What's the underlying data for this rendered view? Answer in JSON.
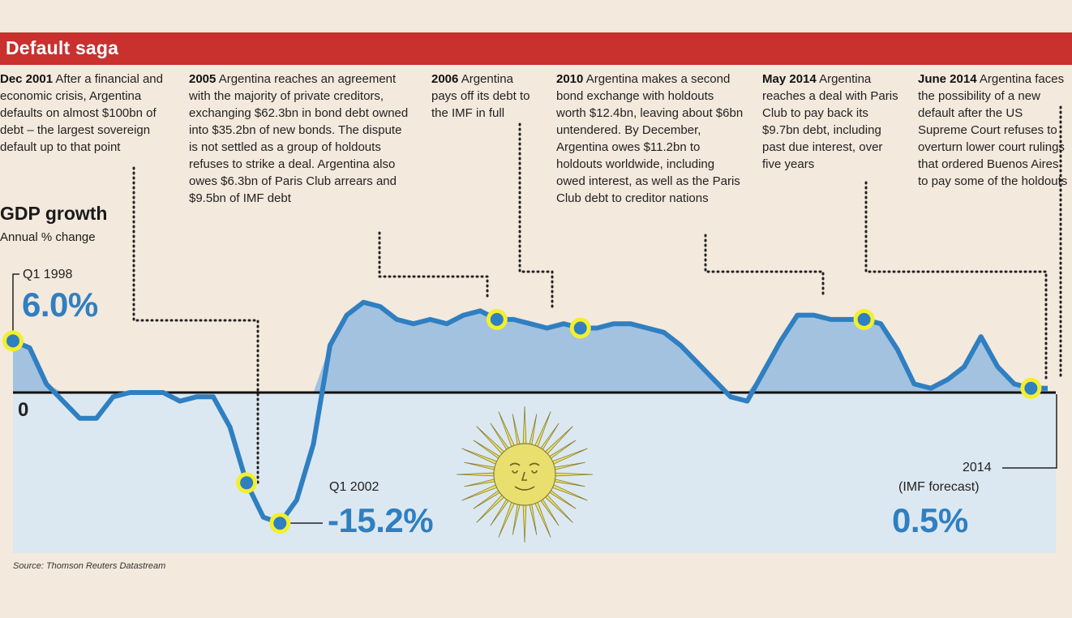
{
  "title": "Default saga",
  "chart_title": "GDP growth",
  "chart_subtitle": "Annual % change",
  "zero_label": "0",
  "source": "Source: Thomson Reuters Datastream",
  "annotations": [
    {
      "date": "Dec 2001",
      "text": "After a financial and economic crisis, Argentina defaults on almost $100bn of debt – the largest sovereign default up to that point"
    },
    {
      "date": "2005",
      "text": "Argentina reaches an agreement with the majority of private creditors, exchanging $62.3bn in bond debt owned into $35.2bn of new bonds. The dispute is not settled as a group of holdouts refuses to strike a deal. Argentina also owes $6.3bn of Paris Club arrears and $9.5bn of IMF debt"
    },
    {
      "date": "2006",
      "text": "Argentina pays off its debt to the IMF in full"
    },
    {
      "date": "2010",
      "text": "Argentina makes a second bond exchange with holdouts worth $12.4bn, leaving about $6bn untendered. By December, Argentina owes $11.2bn to holdouts worldwide, including owed interest, as well as the Paris Club debt to creditor nations"
    },
    {
      "date": "May 2014",
      "text": "Argentina reaches a deal with Paris Club to pay back its $9.7bn debt, including past due interest, over five years"
    },
    {
      "date": "June 2014",
      "text": "Argentina faces the possibility of a new default after the US Supreme Court refuses to overturn lower court rulings that ordered Buenos Aires to pay some of the holdouts"
    }
  ],
  "callouts": {
    "start": {
      "label": "Q1 1998",
      "value": "6.0%"
    },
    "low": {
      "label": "Q1 2002",
      "value": "-15.2%"
    },
    "end": {
      "label1": "2014",
      "label2": "(IMF forecast)",
      "value": "0.5%"
    }
  },
  "colors": {
    "banner": "#c8312e",
    "line": "#2f7fc1",
    "area_positive": "#a3c2e0",
    "area_negative": "#dce8f1",
    "marker_ring": "#f3ef2c",
    "sun": "#e8df6e"
  },
  "icons": [
    "argentine-sun-of-may"
  ],
  "chart_data": {
    "type": "area",
    "title": "GDP growth",
    "subtitle": "Annual % change",
    "series": [
      {
        "values": [
          6.0,
          5.2,
          1.0,
          -1.0,
          -3.0,
          -3.0,
          -0.5,
          0.0,
          0.0,
          0.0,
          -1.0,
          -0.5,
          -0.5,
          -4.0,
          -10.5,
          -14.5,
          -15.2,
          -12.5,
          -6.0,
          5.5,
          9.0,
          10.5,
          10.0,
          8.5,
          8.0,
          8.5,
          8.0,
          9.0,
          9.5,
          8.5,
          8.5,
          8.0,
          7.5,
          8.0,
          7.5,
          7.5,
          8.0,
          8.0,
          7.5,
          7.0,
          5.5,
          3.5,
          1.5,
          -0.5,
          -1.0,
          2.5,
          6.0,
          9.0,
          9.0,
          8.5,
          8.5,
          8.5,
          8.0,
          5.0,
          1.0,
          0.5,
          1.5,
          3.0,
          6.5,
          3.0,
          1.0,
          0.5,
          0.5
        ]
      }
    ],
    "ylim": [
      -16,
      11
    ],
    "events": [
      {
        "label": "Dec 2001",
        "index": 14,
        "value": -10.5
      },
      {
        "label": "Q1 2002",
        "index": 16,
        "value": -15.2
      },
      {
        "label": "Q1 1998",
        "index": 0,
        "value": 6.0
      },
      {
        "label": "2005",
        "index": 29,
        "value": 8.5
      },
      {
        "label": "2006",
        "index": 34,
        "value": 7.5
      },
      {
        "label": "May 2014",
        "index": 51,
        "value": 8.5
      },
      {
        "label": "2014",
        "index": 61,
        "value": 0.5
      }
    ]
  }
}
